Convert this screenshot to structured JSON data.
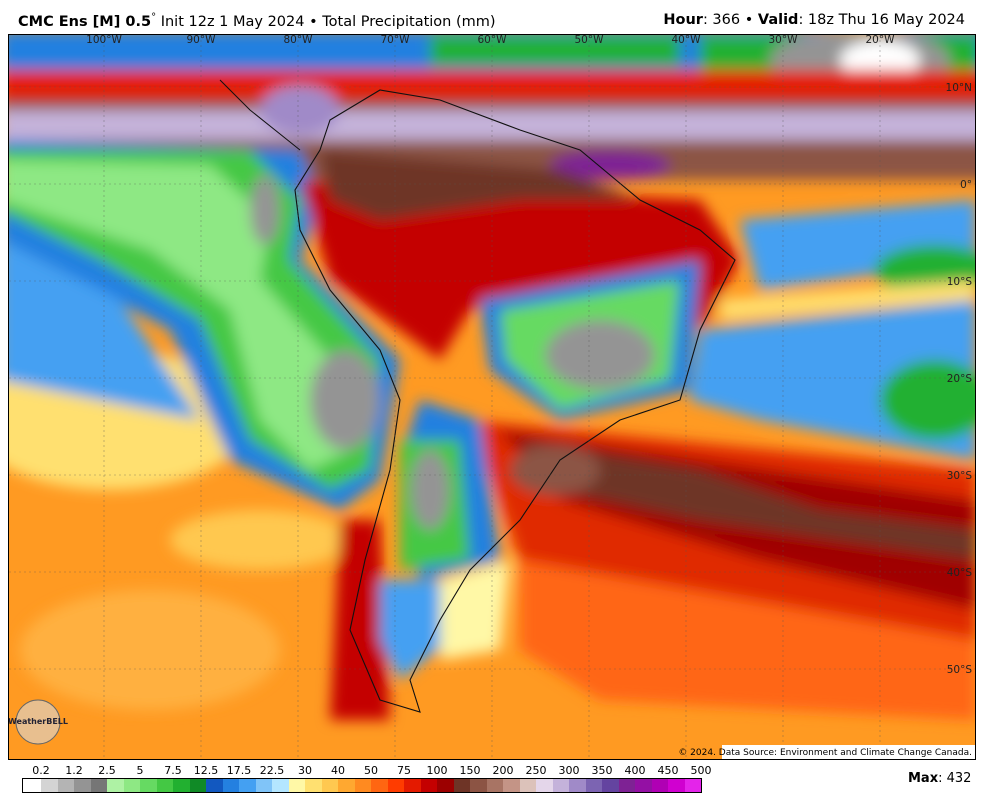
{
  "header": {
    "model": "CMC Ens [M] 0.5",
    "degree": "°",
    "init": "Init 12z 1 May 2024 • Total Precipitation (mm)",
    "hour_label": "Hour",
    "hour_text": ": 366 • ",
    "valid_label": "Valid",
    "valid_text": ": 18z Thu 16 May 2024"
  },
  "map": {
    "longitudes": [
      "100°W",
      "90°W",
      "80°W",
      "70°W",
      "60°W",
      "50°W",
      "40°W",
      "30°W",
      "20°W"
    ],
    "latitudes": [
      "10°N",
      "0°",
      "10°S",
      "20°S",
      "30°S",
      "40°S",
      "50°S"
    ],
    "copyright": "© 2024. Data Source: Environment and Climate Change Canada.",
    "logo": "WeatherBELL"
  },
  "colorbar": {
    "levels": [
      0.2,
      1.2,
      2.5,
      5,
      7.5,
      12.5,
      17.5,
      22.5,
      30,
      40,
      50,
      75,
      100,
      150,
      200,
      250,
      300,
      350,
      400,
      450,
      500
    ],
    "colors": [
      "#ffffff",
      "#d4d4d4",
      "#b4b4b4",
      "#949494",
      "#767676",
      "#aef2a4",
      "#8ee884",
      "#66da62",
      "#44c844",
      "#22b030",
      "#108a26",
      "#1258c0",
      "#2480e0",
      "#44a0f2",
      "#80c4f8",
      "#b4e6ff",
      "#fff8a6",
      "#ffe070",
      "#ffc850",
      "#ffa830",
      "#ff8a20",
      "#ff6612",
      "#ff3c00",
      "#e41a00",
      "#c40000",
      "#9c0000",
      "#6e3426",
      "#8c5444",
      "#a87464",
      "#c49486",
      "#dcc2ba",
      "#e4d6ea",
      "#c4b2da",
      "#a08ac8",
      "#7c64b2",
      "#6444a0",
      "#7e2294",
      "#9410a4",
      "#b000b4",
      "#d000d0",
      "#e424ea"
    ]
  },
  "footer": {
    "max_label": "Max",
    "max_text": ": 432"
  }
}
